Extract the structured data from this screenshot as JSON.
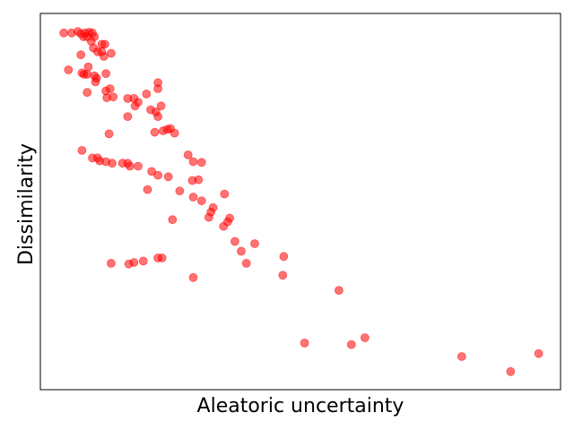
{
  "chart_data": {
    "type": "scatter",
    "xlabel": "Aleatoric uncertainty",
    "ylabel": "Dissimilarity",
    "ticks_visible": false,
    "grid": false,
    "marker_color": "#ff0000",
    "marker_alpha": 0.55,
    "xlim": [
      0,
      100
    ],
    "ylim": [
      0,
      100
    ],
    "points": [
      [
        4.5,
        94.8
      ],
      [
        6.0,
        94.8
      ],
      [
        7.2,
        95.2
      ],
      [
        7.8,
        94.6
      ],
      [
        8.6,
        94.8
      ],
      [
        9.4,
        95.0
      ],
      [
        9.0,
        93.8
      ],
      [
        8.3,
        93.8
      ],
      [
        10.0,
        94.8
      ],
      [
        10.4,
        93.8
      ],
      [
        9.8,
        92.6
      ],
      [
        11.8,
        91.8
      ],
      [
        12.4,
        91.8
      ],
      [
        10.2,
        90.8
      ],
      [
        11.0,
        89.8
      ],
      [
        11.8,
        89.8
      ],
      [
        13.6,
        89.4
      ],
      [
        12.2,
        88.6
      ],
      [
        7.8,
        89.0
      ],
      [
        9.2,
        85.8
      ],
      [
        5.4,
        85.0
      ],
      [
        8.0,
        84.2
      ],
      [
        8.4,
        83.8
      ],
      [
        9.0,
        83.8
      ],
      [
        10.4,
        83.4
      ],
      [
        10.8,
        82.8
      ],
      [
        10.6,
        81.8
      ],
      [
        12.6,
        84.0
      ],
      [
        13.4,
        80.0
      ],
      [
        12.6,
        79.4
      ],
      [
        9.0,
        79.0
      ],
      [
        14.0,
        77.8
      ],
      [
        12.8,
        77.6
      ],
      [
        16.8,
        77.4
      ],
      [
        18.0,
        77.4
      ],
      [
        18.8,
        76.4
      ],
      [
        18.2,
        75.4
      ],
      [
        20.4,
        78.6
      ],
      [
        22.6,
        81.6
      ],
      [
        22.6,
        80.0
      ],
      [
        23.2,
        75.4
      ],
      [
        21.2,
        74.4
      ],
      [
        22.2,
        73.8
      ],
      [
        22.6,
        72.6
      ],
      [
        16.8,
        72.6
      ],
      [
        23.6,
        68.8
      ],
      [
        24.4,
        69.2
      ],
      [
        25.0,
        69.4
      ],
      [
        22.0,
        68.4
      ],
      [
        25.8,
        68.2
      ],
      [
        13.2,
        68.0
      ],
      [
        8.0,
        63.6
      ],
      [
        10.0,
        61.6
      ],
      [
        11.0,
        61.6
      ],
      [
        11.4,
        60.8
      ],
      [
        12.6,
        60.6
      ],
      [
        13.8,
        60.2
      ],
      [
        15.8,
        60.2
      ],
      [
        16.8,
        60.2
      ],
      [
        17.2,
        59.4
      ],
      [
        18.8,
        59.4
      ],
      [
        21.4,
        58.0
      ],
      [
        22.6,
        57.0
      ],
      [
        24.6,
        56.6
      ],
      [
        28.4,
        62.4
      ],
      [
        29.4,
        60.6
      ],
      [
        31.0,
        60.4
      ],
      [
        29.2,
        55.6
      ],
      [
        30.4,
        55.8
      ],
      [
        20.6,
        53.2
      ],
      [
        26.8,
        52.8
      ],
      [
        29.4,
        51.2
      ],
      [
        31.0,
        50.2
      ],
      [
        33.2,
        48.4
      ],
      [
        35.4,
        52.0
      ],
      [
        32.8,
        47.2
      ],
      [
        32.4,
        45.8
      ],
      [
        25.4,
        45.2
      ],
      [
        36.4,
        45.6
      ],
      [
        36.0,
        44.6
      ],
      [
        35.2,
        43.4
      ],
      [
        37.4,
        39.4
      ],
      [
        38.6,
        36.8
      ],
      [
        41.2,
        38.8
      ],
      [
        39.6,
        33.6
      ],
      [
        46.8,
        35.4
      ],
      [
        46.6,
        30.4
      ],
      [
        13.6,
        33.6
      ],
      [
        17.0,
        33.4
      ],
      [
        18.0,
        33.8
      ],
      [
        19.8,
        34.2
      ],
      [
        22.6,
        35.0
      ],
      [
        23.4,
        35.0
      ],
      [
        29.4,
        29.8
      ],
      [
        57.4,
        26.4
      ],
      [
        50.8,
        12.4
      ],
      [
        59.8,
        12.0
      ],
      [
        62.4,
        13.8
      ],
      [
        81.0,
        8.8
      ],
      [
        90.4,
        4.8
      ],
      [
        95.8,
        9.6
      ]
    ]
  }
}
